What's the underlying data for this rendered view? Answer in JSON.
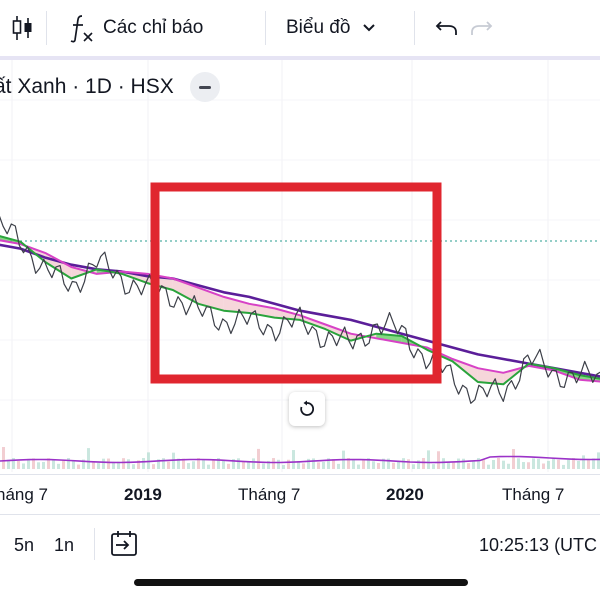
{
  "toolbar": {
    "indicators_label": "Các chỉ báo",
    "chart_type_label": "Biểu đồ",
    "icons": [
      "candles-icon",
      "function-icon",
      "chevron-down-icon",
      "undo-icon",
      "redo-icon"
    ]
  },
  "legend": {
    "symbol_title": "ất Xanh · 1D · HSX"
  },
  "xaxis": {
    "labels": [
      "háng 7",
      "2019",
      "Tháng 7",
      "2020",
      "Tháng 7"
    ]
  },
  "bottom": {
    "ranges": [
      "5n",
      "1n"
    ],
    "time": "10:25:13 (UTC"
  },
  "colors": {
    "highlight_box": "#e0262f",
    "ma_purple": "#5b1e99",
    "ma_magenta": "#d742c6",
    "ma_green": "#2aa43c",
    "cloud_green": "#5ccb5a",
    "cloud_pink": "#f2c4cb",
    "price_line": "#3c3f48",
    "dotted_level": "#2a9d8f",
    "volume_line": "#9b32c8"
  },
  "chart_data": {
    "type": "line",
    "title": "ất Xanh · 1D · HSX",
    "x_ticks": [
      "háng 7",
      "2019",
      "Tháng 7",
      "2020",
      "Tháng 7"
    ],
    "series": [
      {
        "values": [
          70,
          68,
          64,
          61,
          59,
          58,
          56,
          55,
          52,
          49,
          47,
          44,
          41,
          39,
          37,
          34,
          31,
          28,
          25,
          22,
          20,
          18,
          16,
          14,
          12
        ]
      },
      {
        "values": [
          72,
          70,
          66,
          60,
          57,
          58,
          57,
          55,
          51,
          47,
          44,
          42,
          39,
          35,
          31,
          29,
          27,
          25,
          20,
          16,
          14,
          17,
          15,
          11,
          10
        ]
      },
      {
        "values": [
          74,
          71,
          62,
          55,
          59,
          57,
          53,
          50,
          44,
          41,
          40,
          38,
          37,
          33,
          28,
          31,
          30,
          24,
          19,
          10,
          9,
          18,
          16,
          13,
          11
        ]
      },
      {
        "values": [
          78,
          72,
          58,
          52,
          62,
          55,
          50,
          48,
          40,
          37,
          36,
          34,
          36,
          30,
          26,
          35,
          32,
          20,
          12,
          4,
          6,
          20,
          14,
          12,
          12
        ]
      }
    ],
    "markers": [
      {
        "type": "rectangle",
        "label": "",
        "color": "#e0262f"
      }
    ]
  }
}
